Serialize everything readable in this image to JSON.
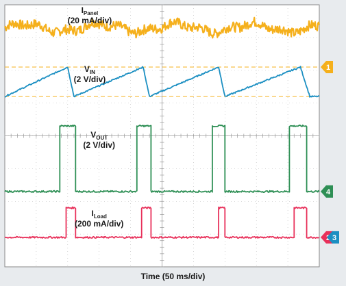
{
  "chart_data": {
    "type": "line",
    "xlabel": "Time (50 ms/div)",
    "x_divisions": 10,
    "y_divisions": 8,
    "grid": true,
    "series": [
      {
        "name": "IPanel (20 mA/div)",
        "label_main": "I",
        "label_sub": "Panel",
        "label_scale": "(20 mA/div)",
        "color": "#f5b01c",
        "shape": "noisy-flat",
        "level_div": 7.3,
        "noise_div": 0.15
      },
      {
        "name": "VIN (2 V/div)",
        "label_main": "V",
        "label_sub": "IN",
        "label_scale": "(2 V/div)",
        "color": "#1b8fc2",
        "marker": "1",
        "marker_color": "#f5b01c",
        "shape": "sawtooth",
        "min_div": 5.2,
        "max_div": 6.1,
        "ref_lines_div": [
          6.1,
          5.2
        ],
        "x_div": [
          0,
          2.0,
          2.2,
          4.4,
          4.6,
          6.8,
          7.0,
          9.4,
          9.7,
          10
        ],
        "y_div": [
          5.2,
          6.1,
          5.2,
          6.1,
          5.2,
          6.1,
          5.2,
          6.1,
          5.2,
          5.2
        ]
      },
      {
        "name": "VOUT (2 V/div)",
        "label_main": "V",
        "label_sub": "OUT",
        "label_scale": "(2 V/div)",
        "color": "#2e8f55",
        "marker": "4",
        "marker_color": "#2e8f55",
        "shape": "pulse",
        "low_div": 2.3,
        "high_div": 4.3,
        "pulses_div": [
          [
            1.75,
            2.25
          ],
          [
            4.2,
            4.65
          ],
          [
            6.6,
            7.0
          ],
          [
            9.05,
            9.6
          ]
        ]
      },
      {
        "name": "ILoad (200 mA/div)",
        "label_main": "I",
        "label_sub": "Load",
        "label_scale": "(200 mA/div)",
        "color": "#e8305a",
        "marker": "2",
        "marker_color": "#e8305a",
        "marker2": "3",
        "marker2_color": "#1b8fc2",
        "shape": "pulse",
        "low_div": 0.9,
        "high_div": 1.8,
        "pulses_div": [
          [
            1.95,
            2.25
          ],
          [
            4.35,
            4.65
          ],
          [
            6.8,
            7.0
          ],
          [
            9.2,
            9.6
          ]
        ]
      }
    ]
  }
}
